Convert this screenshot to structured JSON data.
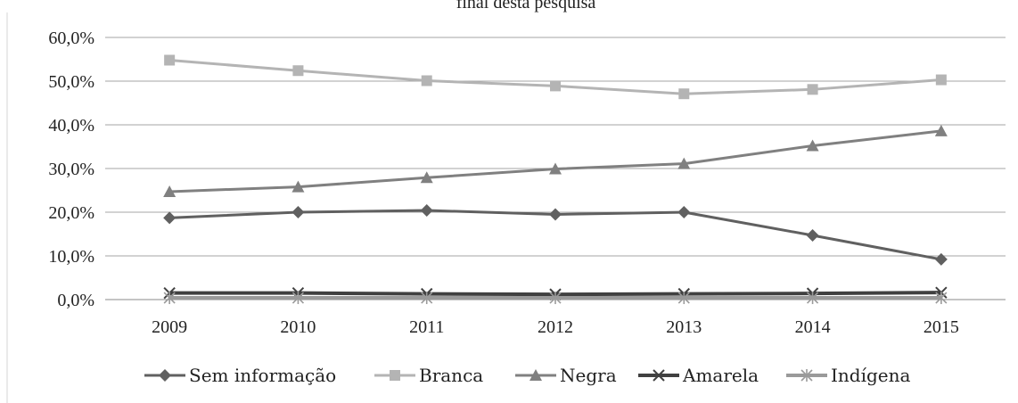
{
  "chart_data": {
    "type": "line",
    "title": "final desta pesquisa",
    "xlabel": "",
    "ylabel": "",
    "categories": [
      "2009",
      "2010",
      "2011",
      "2012",
      "2013",
      "2014",
      "2015"
    ],
    "y_ticks": [
      "0,0%",
      "10,0%",
      "20,0%",
      "30,0%",
      "40,0%",
      "50,0%",
      "60,0%"
    ],
    "ylim": [
      0,
      60
    ],
    "grid": true,
    "legend_position": "bottom",
    "series": [
      {
        "name": "Sem informação",
        "values": [
          18.7,
          20.0,
          20.4,
          19.5,
          20.0,
          14.7,
          9.2
        ],
        "color": "#606060",
        "marker": "diamond",
        "stroke_width": 3
      },
      {
        "name": "Branca",
        "values": [
          54.8,
          52.4,
          50.1,
          48.9,
          47.1,
          48.1,
          50.3
        ],
        "color": "#b4b4b4",
        "marker": "square",
        "stroke_width": 3
      },
      {
        "name": "Negra",
        "values": [
          24.7,
          25.8,
          27.9,
          29.9,
          31.1,
          35.2,
          38.6
        ],
        "color": "#808080",
        "marker": "triangle",
        "stroke_width": 3
      },
      {
        "name": "Amarela",
        "values": [
          1.5,
          1.5,
          1.3,
          1.2,
          1.3,
          1.4,
          1.6
        ],
        "color": "#404040",
        "marker": "x",
        "stroke_width": 4
      },
      {
        "name": "Indígena",
        "values": [
          0.4,
          0.4,
          0.4,
          0.4,
          0.4,
          0.4,
          0.4
        ],
        "color": "#9a9a9a",
        "marker": "star",
        "stroke_width": 4
      }
    ]
  }
}
